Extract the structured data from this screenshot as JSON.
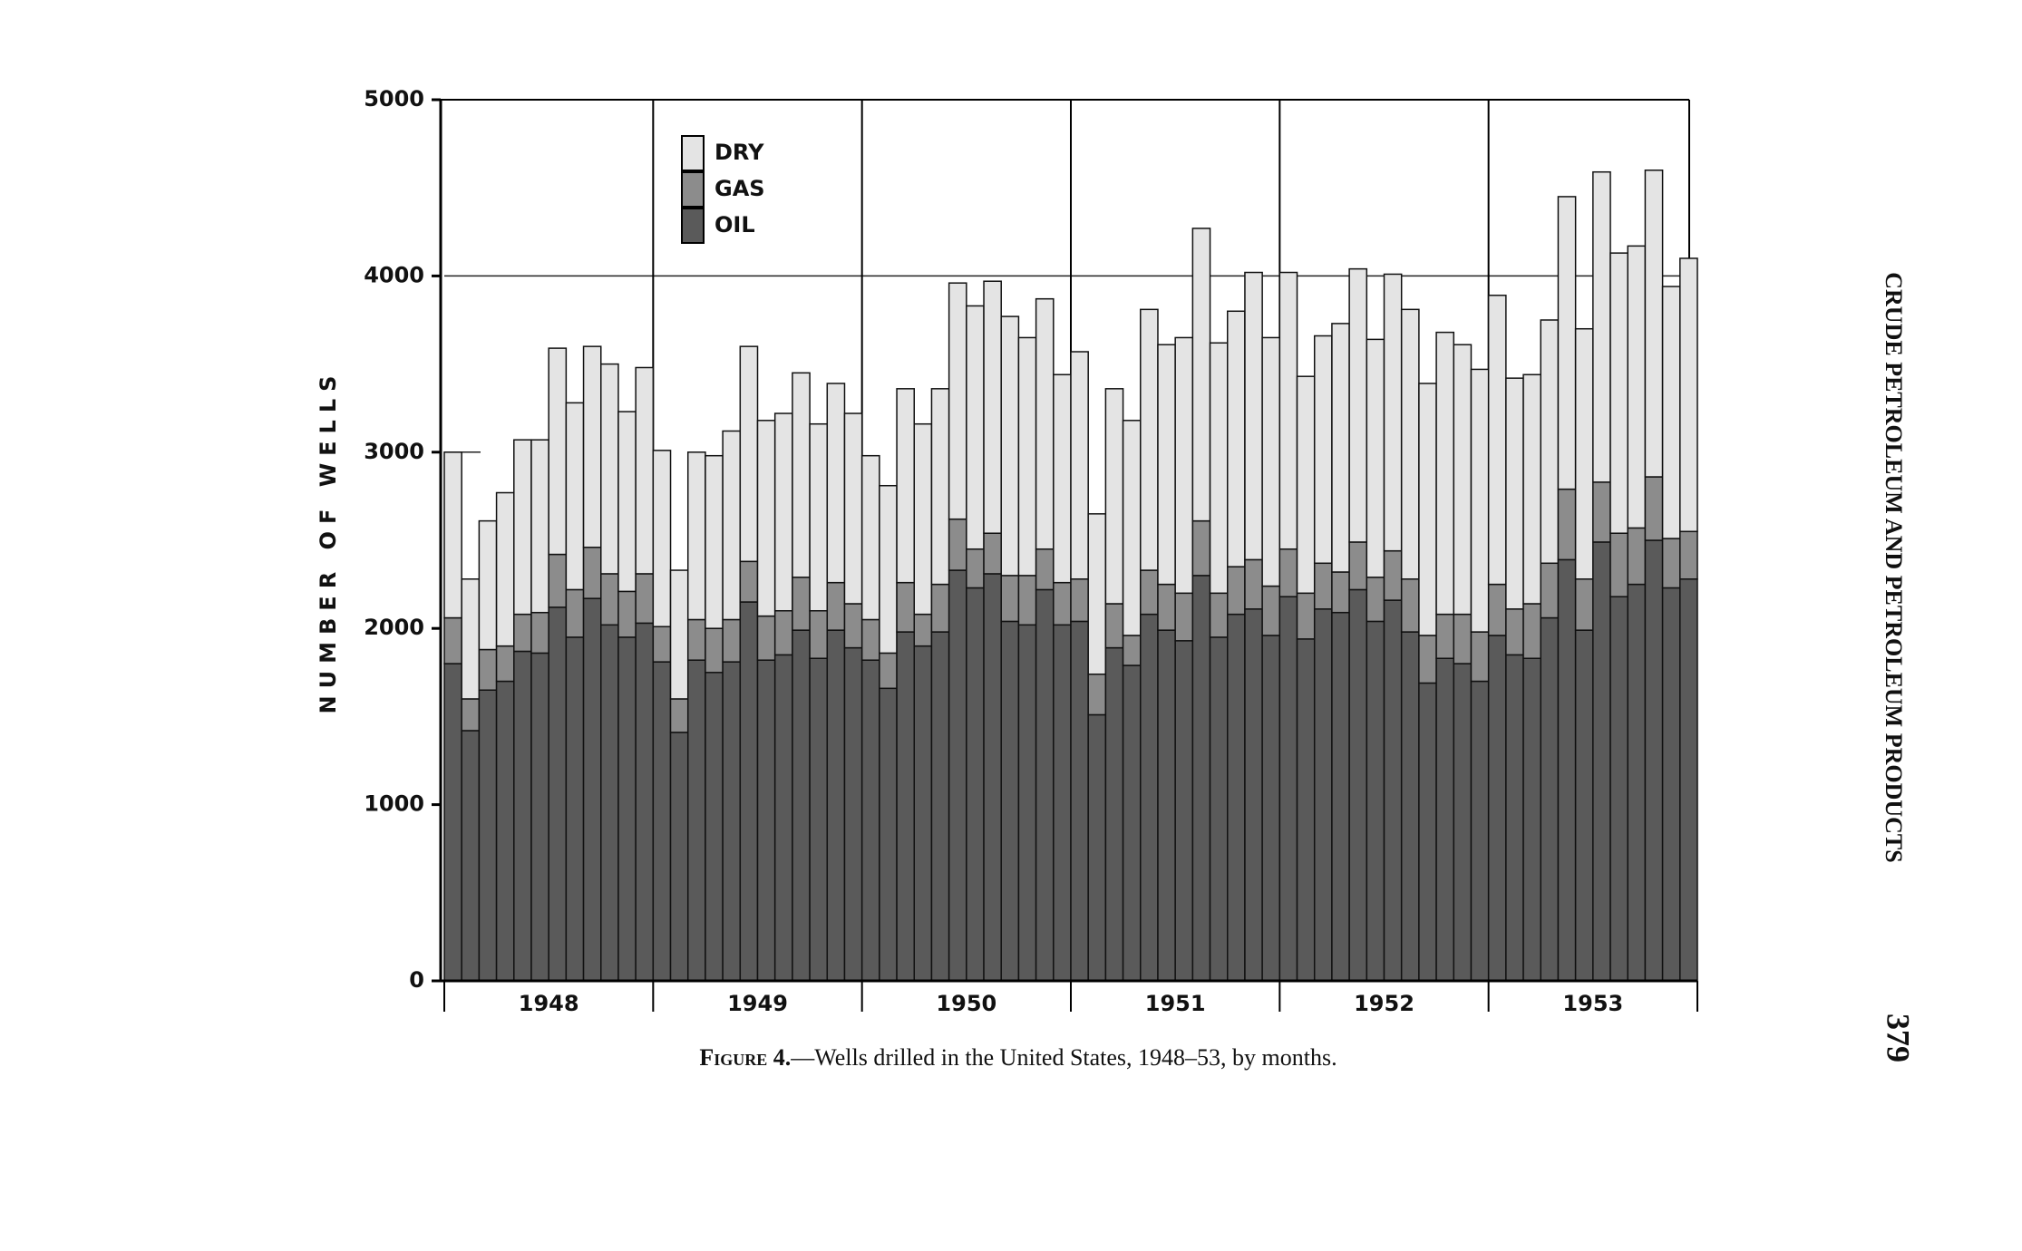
{
  "chart_data": {
    "type": "stacked_bar",
    "ylabel": "NUMBER OF WELLS",
    "caption_label": "Figure 4.",
    "caption": "—Wells drilled in the United States, 1948–53, by months.",
    "running_head": "CRUDE PETROLEUM AND PETROLEUM PRODUCTS",
    "page_number": "379",
    "categories": [
      null,
      null,
      null,
      null,
      null,
      null,
      null,
      null,
      null,
      null,
      null,
      null,
      null,
      null,
      null,
      null,
      null,
      null,
      null,
      null,
      null,
      null,
      null,
      null,
      null,
      null,
      null,
      null,
      null,
      null,
      null,
      null,
      null,
      null,
      null,
      null,
      null,
      null,
      null,
      null,
      null,
      null,
      null,
      null,
      null,
      null,
      null,
      null,
      null,
      null,
      null,
      null,
      null,
      null,
      null,
      null,
      null,
      null,
      null,
      null,
      null,
      null,
      null,
      null,
      null,
      null,
      null,
      null,
      null,
      null,
      null,
      null
    ],
    "year_labels": [
      "1948",
      "1949",
      "1950",
      "1951",
      "1952",
      "1953"
    ],
    "series": [
      {
        "name": "OIL",
        "color": "#5a5a5a",
        "values": [
          1800,
          1420,
          1650,
          1700,
          1870,
          1860,
          2120,
          1950,
          2170,
          2020,
          1950,
          2030,
          1810,
          1410,
          1820,
          1750,
          1810,
          2150,
          1820,
          1850,
          1990,
          1830,
          1990,
          1890,
          1820,
          1660,
          1980,
          1900,
          1980,
          2330,
          2230,
          2310,
          2040,
          2020,
          2220,
          2020,
          2040,
          1510,
          1890,
          1790,
          2080,
          1990,
          1930,
          2300,
          1950,
          2080,
          2110,
          1960,
          2180,
          1940,
          2110,
          2090,
          2220,
          2040,
          2160,
          1980,
          1690,
          1830,
          1800,
          1700,
          1960,
          1850,
          1830,
          2060,
          2390,
          1990,
          2490,
          2180,
          2250,
          2500,
          2230,
          2280
        ]
      },
      {
        "name": "GAS",
        "color": "#8c8c8c",
        "values": [
          260,
          180,
          230,
          200,
          210,
          230,
          300,
          270,
          290,
          290,
          260,
          280,
          200,
          190,
          230,
          250,
          240,
          230,
          250,
          250,
          300,
          270,
          270,
          250,
          230,
          200,
          280,
          180,
          270,
          290,
          220,
          230,
          260,
          280,
          230,
          240,
          240,
          230,
          250,
          170,
          250,
          260,
          270,
          310,
          250,
          270,
          280,
          280,
          270,
          260,
          260,
          230,
          270,
          250,
          280,
          300,
          270,
          250,
          280,
          280,
          290,
          260,
          310,
          310,
          400,
          290,
          340,
          360,
          320,
          360,
          280,
          270
        ]
      },
      {
        "name": "DRY",
        "color": "#e4e4e4",
        "values": [
          940,
          680,
          730,
          870,
          990,
          980,
          1170,
          1060,
          1140,
          1190,
          1020,
          1170,
          1000,
          730,
          950,
          980,
          1070,
          1220,
          1110,
          1120,
          1160,
          1060,
          1130,
          1080,
          930,
          950,
          1100,
          1080,
          1110,
          1340,
          1380,
          1430,
          1470,
          1350,
          1420,
          1180,
          1290,
          910,
          1220,
          1220,
          1480,
          1360,
          1450,
          1660,
          1420,
          1450,
          1630,
          1410,
          1570,
          1230,
          1290,
          1410,
          1550,
          1350,
          1570,
          1530,
          1430,
          1600,
          1530,
          1490,
          1640,
          1310,
          1300,
          1380,
          1660,
          1420,
          1760,
          1590,
          1600,
          1740,
          1430,
          1550
        ]
      }
    ],
    "ylim": [
      0,
      5000
    ],
    "yticks": [
      0,
      1000,
      2000,
      3000,
      4000,
      5000
    ],
    "gridlines": [
      {
        "value": 4000,
        "style": "solid"
      },
      {
        "value": 3000,
        "style": "dashed"
      }
    ],
    "legend": "upper-left"
  }
}
